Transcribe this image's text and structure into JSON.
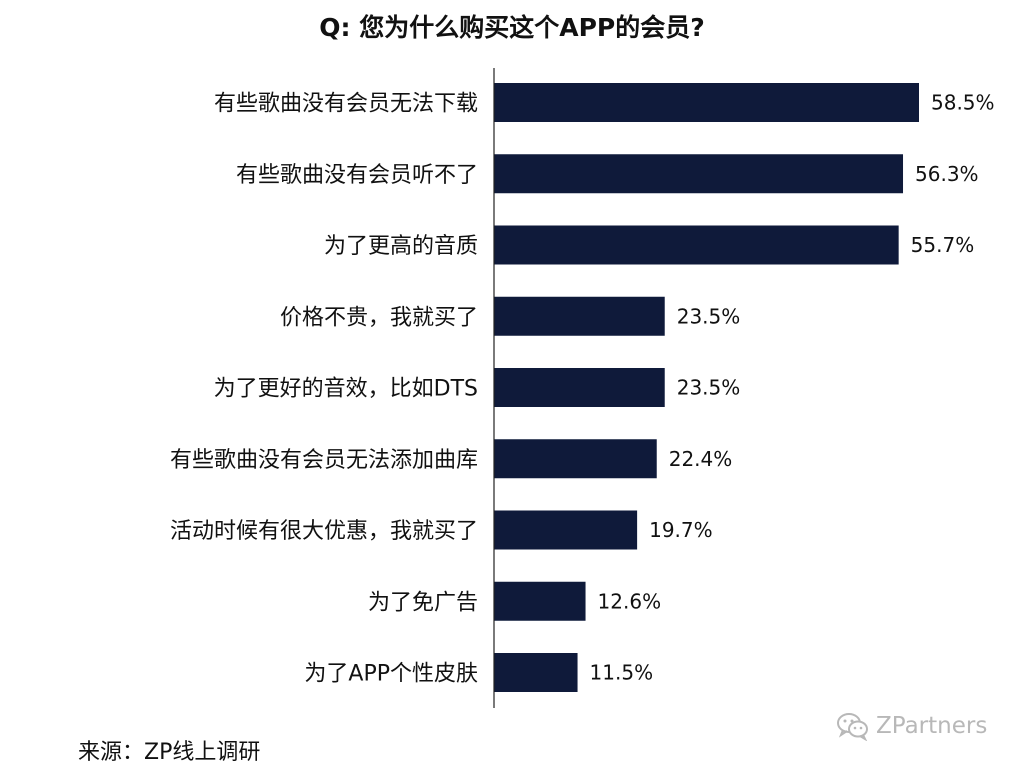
{
  "chart_data": {
    "type": "bar",
    "orientation": "horizontal",
    "title": "Q: 您为什么购买这个APP的会员?",
    "categories": [
      "有些歌曲没有会员无法下载",
      "有些歌曲没有会员听不了",
      "为了更高的音质",
      "价格不贵，我就买了",
      "为了更好的音效，比如DTS",
      "有些歌曲没有会员无法添加曲库",
      "活动时候有很大优惠，我就买了",
      "为了免广告",
      "为了APP个性皮肤"
    ],
    "values": [
      58.5,
      56.3,
      55.7,
      23.5,
      23.5,
      22.4,
      19.7,
      12.6,
      11.5
    ],
    "value_labels": [
      "58.5%",
      "56.3%",
      "55.7%",
      "23.5%",
      "23.5%",
      "22.4%",
      "19.7%",
      "12.6%",
      "11.5%"
    ],
    "unit": "%",
    "xlim": [
      0,
      58.5
    ],
    "grid": false,
    "legend": "none",
    "bar_color": "#0f1a3a"
  },
  "source": "来源：ZP线上调研",
  "watermark": "ZPartners",
  "watermark_icon": "wechat-icon"
}
